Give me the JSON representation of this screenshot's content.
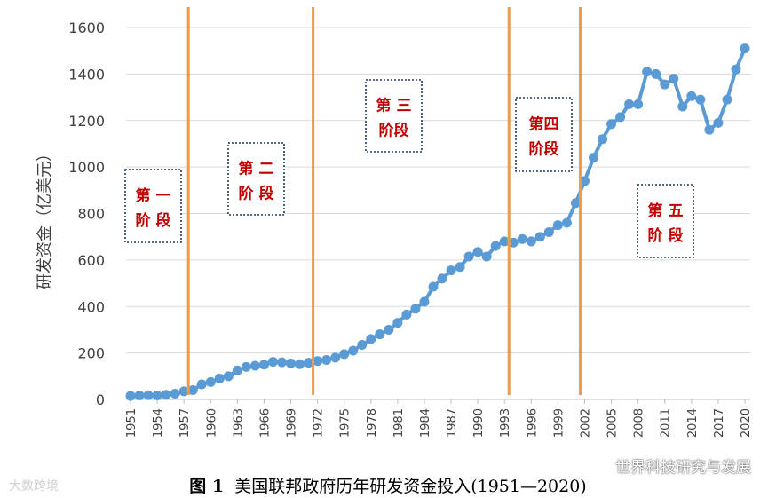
{
  "chart_data": {
    "type": "line",
    "ylabel": "研发资金（亿美元）",
    "xlabel": "",
    "ylim": [
      0,
      1600
    ],
    "y_ticks": [
      0,
      200,
      400,
      600,
      800,
      1000,
      1200,
      1400,
      1600
    ],
    "x_tick_labels": [
      "1951",
      "1954",
      "1957",
      "1960",
      "1963",
      "1966",
      "1969",
      "1972",
      "1975",
      "1978",
      "1981",
      "1984",
      "1987",
      "1990",
      "1993",
      "1996",
      "1999",
      "2002",
      "2005",
      "2008",
      "2011",
      "2014",
      "2017",
      "2020"
    ],
    "x": [
      1951,
      1952,
      1953,
      1954,
      1955,
      1956,
      1957,
      1958,
      1959,
      1960,
      1961,
      1962,
      1963,
      1964,
      1965,
      1966,
      1967,
      1968,
      1969,
      1970,
      1971,
      1972,
      1973,
      1974,
      1975,
      1976,
      1977,
      1978,
      1979,
      1980,
      1981,
      1982,
      1983,
      1984,
      1985,
      1986,
      1987,
      1988,
      1989,
      1990,
      1991,
      1992,
      1993,
      1994,
      1995,
      1996,
      1997,
      1998,
      1999,
      2000,
      2001,
      2002,
      2003,
      2004,
      2005,
      2006,
      2007,
      2008,
      2009,
      2010,
      2011,
      2012,
      2013,
      2014,
      2015,
      2016,
      2017,
      2018,
      2019,
      2020
    ],
    "series": [
      {
        "name": "",
        "color": "#5b9bd5",
        "values": [
          15,
          17,
          18,
          17,
          20,
          25,
          35,
          40,
          65,
          75,
          90,
          100,
          125,
          140,
          145,
          150,
          162,
          160,
          155,
          152,
          158,
          165,
          170,
          180,
          195,
          210,
          235,
          260,
          280,
          300,
          330,
          365,
          390,
          420,
          485,
          520,
          555,
          570,
          615,
          635,
          615,
          660,
          680,
          675,
          690,
          680,
          700,
          720,
          750,
          760,
          845,
          940,
          1040,
          1120,
          1185,
          1215,
          1270,
          1270,
          1410,
          1400,
          1355,
          1380,
          1260,
          1305,
          1290,
          1160,
          1190,
          1290,
          1420,
          1510
        ]
      }
    ],
    "grid": "horizontal",
    "stage_lines": [
      1957.5,
      1971.5,
      1993.5,
      2001.5
    ],
    "stage_line_color": "#ed9a49",
    "stages": [
      {
        "line1": "第 一",
        "line2": "阶 段"
      },
      {
        "line1": "第 二",
        "line2": "阶 段"
      },
      {
        "line1": "第 三",
        "line2": "阶段"
      },
      {
        "line1": "第四",
        "line2": "阶段"
      },
      {
        "line1": "第 五",
        "line2": "阶 段"
      }
    ]
  },
  "caption": {
    "label": "图  1",
    "text": "美国联邦政府历年研发资金投入(1951—2020)"
  },
  "watermarks": {
    "left": "大数跨境",
    "right": "世界科技研究与发展"
  }
}
